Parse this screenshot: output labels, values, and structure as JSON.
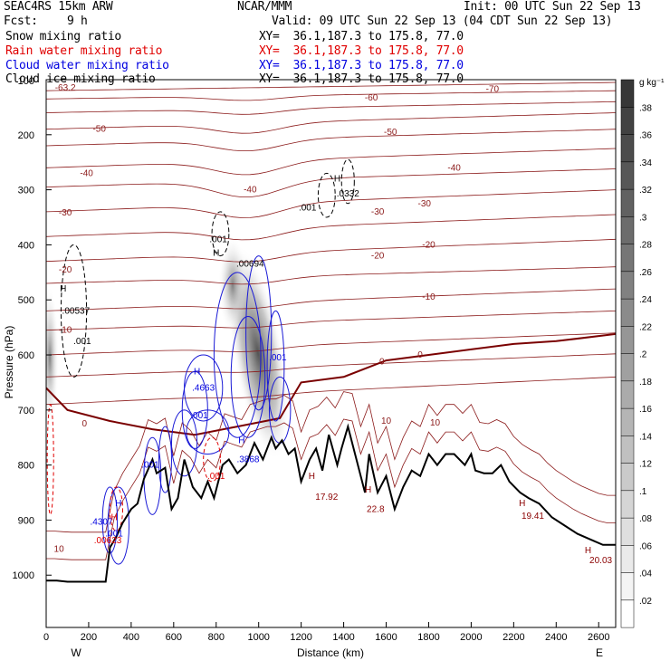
{
  "header": {
    "model": "SEAC4RS 15km ARW",
    "org": "NCAR/MMM",
    "init": "Init: 00 UTC Sun 22 Sep 13",
    "fcst_label": "Fcst:",
    "fcst_value": "9 h",
    "valid": "Valid: 09 UTC Sun 22 Sep 13 (04 CDT Sun 22 Sep 13)",
    "fields": [
      {
        "name": "Snow mixing ratio",
        "xy": "XY=  36.1,187.3 to 175.8, 77.0",
        "color": "#000000"
      },
      {
        "name": "Rain water mixing ratio",
        "xy": "XY=  36.1,187.3 to 175.8, 77.0",
        "color": "#e00000"
      },
      {
        "name": "Cloud water mixing ratio",
        "xy": "XY=  36.1,187.3 to 175.8, 77.0",
        "color": "#0000e0"
      },
      {
        "name": "Cloud ice mixing ratio",
        "xy": "XY=  36.1,187.3 to 175.8, 77.0",
        "color": "#000000"
      }
    ]
  },
  "chart_data": {
    "type": "cross-section",
    "xlabel": "Distance (km)",
    "ylabel": "Pressure (hPa)",
    "xlim": [
      0,
      2680
    ],
    "ylim": [
      1095,
      100
    ],
    "x_ticks": [
      0,
      200,
      400,
      600,
      800,
      1000,
      1200,
      1400,
      1600,
      1800,
      2000,
      2200,
      2400,
      2600
    ],
    "y_ticks": [
      200,
      300,
      400,
      500,
      600,
      700,
      800,
      900,
      1000
    ],
    "y_top_label": "100",
    "end_labels": {
      "left": "W",
      "right": "E"
    },
    "colorbar": {
      "unit": "g kg⁻¹",
      "ticks": [
        ".02",
        ".04",
        ".06",
        ".08",
        ".1",
        ".12",
        ".14",
        ".16",
        ".18",
        ".2",
        ".22",
        ".24",
        ".26",
        ".28",
        ".3",
        ".32",
        ".34",
        ".36",
        ".38"
      ]
    },
    "temperature_labels": [
      {
        "text": "-63.2",
        "x": 90,
        "p": 115
      },
      {
        "text": "-70",
        "x": 2100,
        "p": 117
      },
      {
        "text": "-60",
        "x": 1530,
        "p": 133
      },
      {
        "text": "-50",
        "x": 250,
        "p": 190
      },
      {
        "text": "-50",
        "x": 1620,
        "p": 195
      },
      {
        "text": "-40",
        "x": 190,
        "p": 270
      },
      {
        "text": "-40",
        "x": 960,
        "p": 300
      },
      {
        "text": "-40",
        "x": 1920,
        "p": 260
      },
      {
        "text": "-30",
        "x": 90,
        "p": 342
      },
      {
        "text": "-30",
        "x": 1560,
        "p": 340
      },
      {
        "text": "-30",
        "x": 1780,
        "p": 325
      },
      {
        "text": "-20",
        "x": 90,
        "p": 445
      },
      {
        "text": "-20",
        "x": 1560,
        "p": 420
      },
      {
        "text": "-20",
        "x": 1800,
        "p": 400
      },
      {
        "text": "-10",
        "x": 90,
        "p": 555
      },
      {
        "text": "-10",
        "x": 1800,
        "p": 495
      },
      {
        "text": "0",
        "x": 1580,
        "p": 612
      },
      {
        "text": "0",
        "x": 1760,
        "p": 600
      },
      {
        "text": "0",
        "x": 180,
        "p": 725
      },
      {
        "text": "10",
        "x": 1600,
        "p": 720
      },
      {
        "text": "10",
        "x": 1830,
        "p": 723
      },
      {
        "text": "10",
        "x": 60,
        "p": 953
      }
    ],
    "max_labels": [
      {
        "text": ".00537",
        "x": 140,
        "p": 520,
        "color": "#000000"
      },
      {
        "text": ".001",
        "x": 170,
        "p": 575,
        "color": "#000000"
      },
      {
        "text": ".001",
        "x": 810,
        "p": 390,
        "color": "#000000"
      },
      {
        "text": ".00694",
        "x": 960,
        "p": 435,
        "color": "#000000"
      },
      {
        "text": ".0332",
        "x": 1420,
        "p": 307,
        "color": "#000000"
      },
      {
        "text": ".001",
        "x": 1230,
        "p": 333,
        "color": "#000000"
      },
      {
        "text": ".4663",
        "x": 740,
        "p": 660,
        "color": "#0000e0"
      },
      {
        "text": ".001",
        "x": 1090,
        "p": 605,
        "color": "#0000e0"
      },
      {
        "text": ".001",
        "x": 720,
        "p": 710,
        "color": "#0000e0"
      },
      {
        "text": ".001",
        "x": 490,
        "p": 800,
        "color": "#0000e0"
      },
      {
        "text": ".3868",
        "x": 950,
        "p": 790,
        "color": "#0000e0"
      },
      {
        "text": ".4307",
        "x": 260,
        "p": 903,
        "color": "#0000e0"
      },
      {
        "text": ".001",
        "x": 320,
        "p": 925,
        "color": "#0000e0"
      },
      {
        "text": ".001",
        "x": 800,
        "p": 820,
        "color": "#e00000"
      },
      {
        "text": ".00623",
        "x": 290,
        "p": 937,
        "color": "#e00000"
      },
      {
        "text": "17.92",
        "x": 1320,
        "p": 858,
        "color": "#8b0000"
      },
      {
        "text": "22.8",
        "x": 1550,
        "p": 880,
        "color": "#8b0000"
      },
      {
        "text": "19.41",
        "x": 2290,
        "p": 893,
        "color": "#8b0000"
      },
      {
        "text": "20.03",
        "x": 2610,
        "p": 973,
        "color": "#8b0000"
      }
    ],
    "max_marks": [
      {
        "x": 80,
        "p": 480,
        "color": "#000000"
      },
      {
        "x": 800,
        "p": 415,
        "color": "#000000"
      },
      {
        "x": 1370,
        "p": 280,
        "color": "#000000"
      },
      {
        "x": 710,
        "p": 630,
        "color": "#0000e0"
      },
      {
        "x": 920,
        "p": 755,
        "color": "#0000e0"
      },
      {
        "x": 340,
        "p": 870,
        "color": "#0000e0"
      },
      {
        "x": 320,
        "p": 895,
        "color": "#e00000"
      },
      {
        "x": 1250,
        "p": 820,
        "color": "#8b0000"
      },
      {
        "x": 1515,
        "p": 845,
        "color": "#8b0000"
      },
      {
        "x": 2240,
        "p": 870,
        "color": "#8b0000"
      },
      {
        "x": 2550,
        "p": 955,
        "color": "#8b0000"
      }
    ],
    "terrain": {
      "x": [
        0,
        50,
        100,
        150,
        200,
        280,
        300,
        330,
        360,
        400,
        430,
        460,
        500,
        520,
        560,
        590,
        620,
        650,
        690,
        730,
        760,
        790,
        830,
        860,
        900,
        940,
        980,
        1020,
        1060,
        1080,
        1110,
        1140,
        1170,
        1200,
        1240,
        1270,
        1300,
        1330,
        1370,
        1390,
        1420,
        1460,
        1500,
        1520,
        1560,
        1600,
        1640,
        1680,
        1720,
        1760,
        1800,
        1840,
        1880,
        1920,
        1970,
        2000,
        2020,
        2060,
        2100,
        2140,
        2180,
        2230,
        2270,
        2320,
        2380,
        2440,
        2500,
        2560,
        2620,
        2680
      ],
      "p": [
        1010,
        1010,
        1012,
        1012,
        1012,
        1012,
        950,
        930,
        905,
        880,
        870,
        825,
        790,
        815,
        805,
        880,
        860,
        790,
        840,
        860,
        830,
        860,
        800,
        790,
        815,
        800,
        760,
        790,
        750,
        770,
        755,
        780,
        770,
        830,
        790,
        770,
        810,
        745,
        800,
        770,
        730,
        790,
        850,
        780,
        850,
        820,
        880,
        840,
        810,
        820,
        780,
        800,
        780,
        780,
        800,
        780,
        810,
        815,
        815,
        800,
        830,
        850,
        860,
        870,
        895,
        910,
        925,
        935,
        945,
        945
      ]
    }
  }
}
